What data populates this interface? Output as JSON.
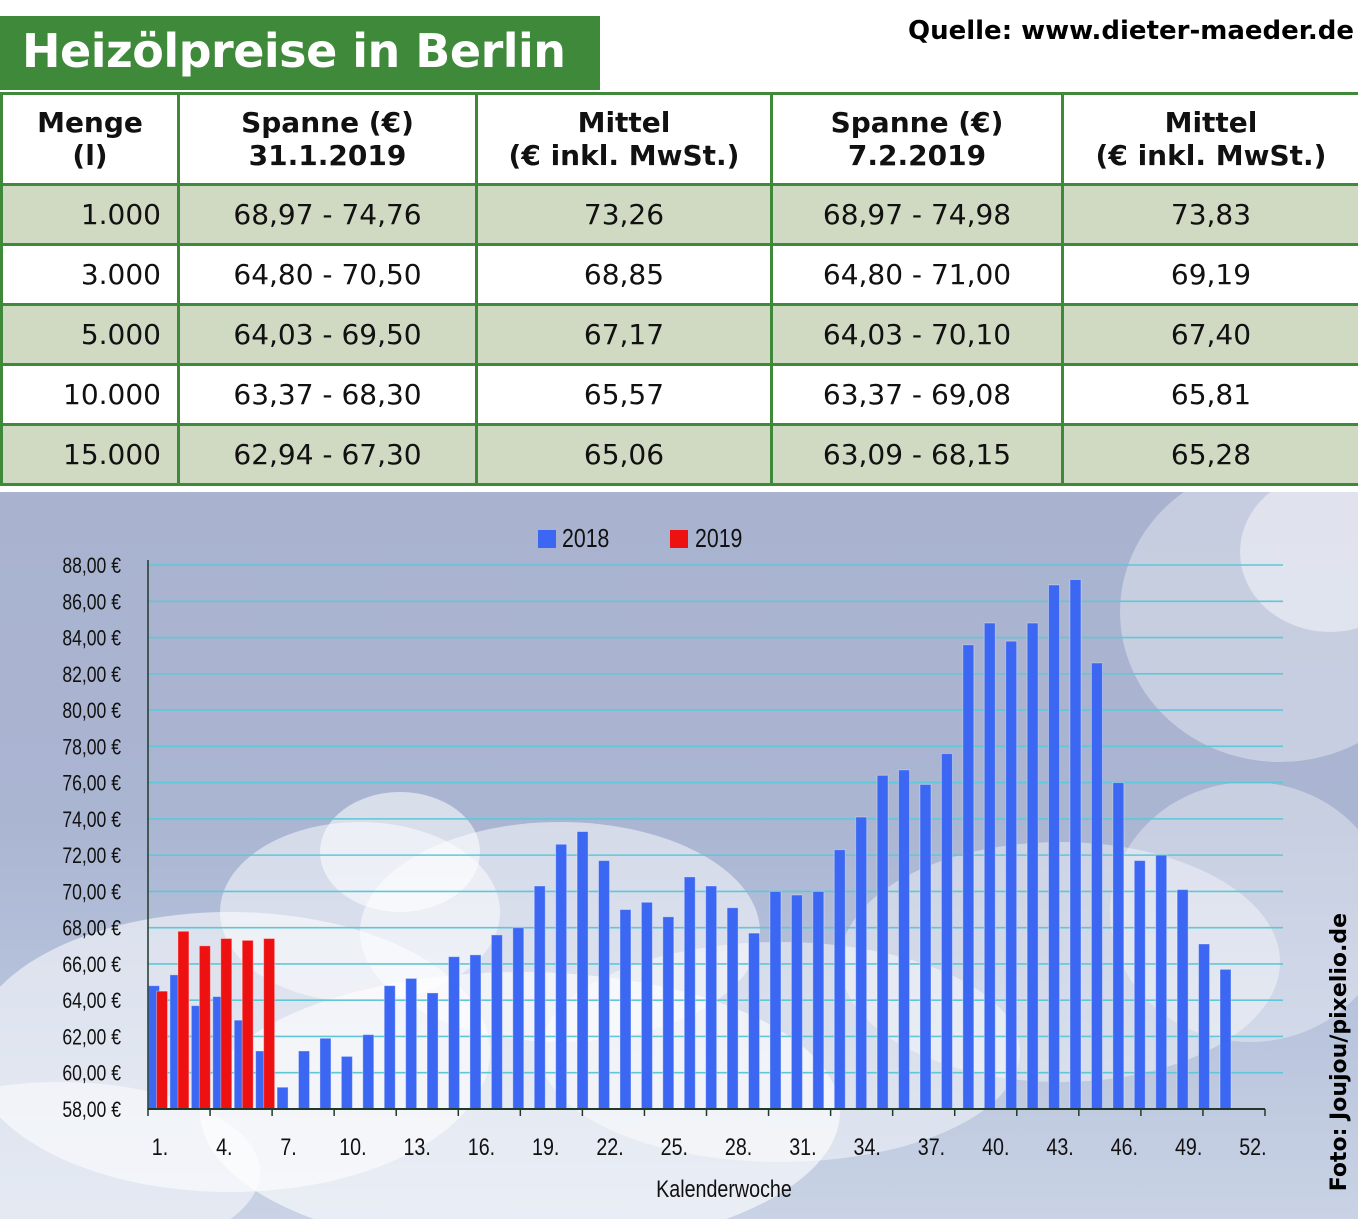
{
  "header": {
    "title": "Heizölpreise in Berlin",
    "source": "Quelle: www.dieter-maeder.de"
  },
  "table": {
    "columns": [
      [
        "Menge",
        "(l)"
      ],
      [
        "Spanne (€)",
        "31.1.2019"
      ],
      [
        "Mittel",
        "(€ inkl. MwSt.)"
      ],
      [
        "Spanne (€)",
        "7.2.2019"
      ],
      [
        "Mittel",
        "(€ inkl. MwSt.)"
      ]
    ],
    "rows": [
      [
        "1.000",
        "68,97 - 74,76",
        "73,26",
        "68,97 - 74,98",
        "73,83"
      ],
      [
        "3.000",
        "64,80 - 70,50",
        "68,85",
        "64,80 - 71,00",
        "69,19"
      ],
      [
        "5.000",
        "64,03 - 69,50",
        "67,17",
        "64,03 - 70,10",
        "67,40"
      ],
      [
        "10.000",
        "63,37 - 68,30",
        "65,57",
        "63,37 - 69,08",
        "65,81"
      ],
      [
        "15.000",
        "62,94 - 67,30",
        "65,06",
        "63,09 - 68,15",
        "65,28"
      ]
    ]
  },
  "photo_credit": "Foto: Joujou/pixelio.de",
  "colors": {
    "brand_green": "#3f8a3a",
    "row_alt": "#d0d9c2",
    "series_2018": "#3b67f2",
    "series_2019": "#ee1111",
    "gridline": "#5fc7d8"
  },
  "chart_data": {
    "type": "bar",
    "xlabel": "Kalenderwoche",
    "ylabel": "",
    "ylim": [
      58,
      88
    ],
    "ytick_step": 2,
    "ytick_labels": [
      "58,00 €",
      "60,00 €",
      "62,00 €",
      "64,00 €",
      "66,00 €",
      "68,00 €",
      "70,00 €",
      "72,00 €",
      "74,00 €",
      "76,00 €",
      "78,00 €",
      "80,00 €",
      "82,00 €",
      "84,00 €",
      "86,00 €",
      "88,00 €"
    ],
    "xtick_labels": [
      "1.",
      "4.",
      "7.",
      "10.",
      "13.",
      "16.",
      "19.",
      "22.",
      "25.",
      "28.",
      "31.",
      "34.",
      "37.",
      "40.",
      "43.",
      "46.",
      "49.",
      "52."
    ],
    "grid": true,
    "legend_position": "top-center",
    "series": [
      {
        "name": "2018",
        "weeks": [
          1,
          2,
          3,
          4,
          5,
          6,
          7,
          8,
          9,
          10,
          11,
          12,
          13,
          14,
          15,
          16,
          17,
          18,
          19,
          20,
          21,
          22,
          23,
          24,
          25,
          26,
          27,
          28,
          29,
          30,
          31,
          32,
          33,
          34,
          35,
          36,
          37,
          38,
          39,
          40,
          41,
          42,
          43,
          44,
          45,
          46,
          47,
          48,
          49,
          50,
          51
        ],
        "values": [
          64.8,
          65.4,
          63.7,
          64.2,
          62.9,
          61.2,
          59.2,
          61.2,
          61.9,
          60.9,
          62.1,
          64.8,
          65.2,
          64.4,
          66.4,
          66.5,
          67.6,
          68.0,
          70.3,
          72.6,
          73.3,
          71.7,
          69.0,
          69.4,
          68.6,
          70.8,
          70.3,
          69.1,
          67.7,
          70.0,
          69.8,
          70.0,
          72.3,
          74.1,
          76.4,
          76.7,
          75.9,
          77.6,
          83.6,
          84.8,
          83.8,
          84.8,
          86.9,
          87.2,
          82.6,
          76.0,
          71.7,
          72.0,
          70.1,
          67.1,
          65.7
        ]
      },
      {
        "name": "2019",
        "weeks": [
          1,
          2,
          3,
          4,
          5,
          6
        ],
        "values": [
          64.5,
          67.8,
          67.0,
          67.4,
          67.3,
          67.4
        ]
      }
    ]
  }
}
